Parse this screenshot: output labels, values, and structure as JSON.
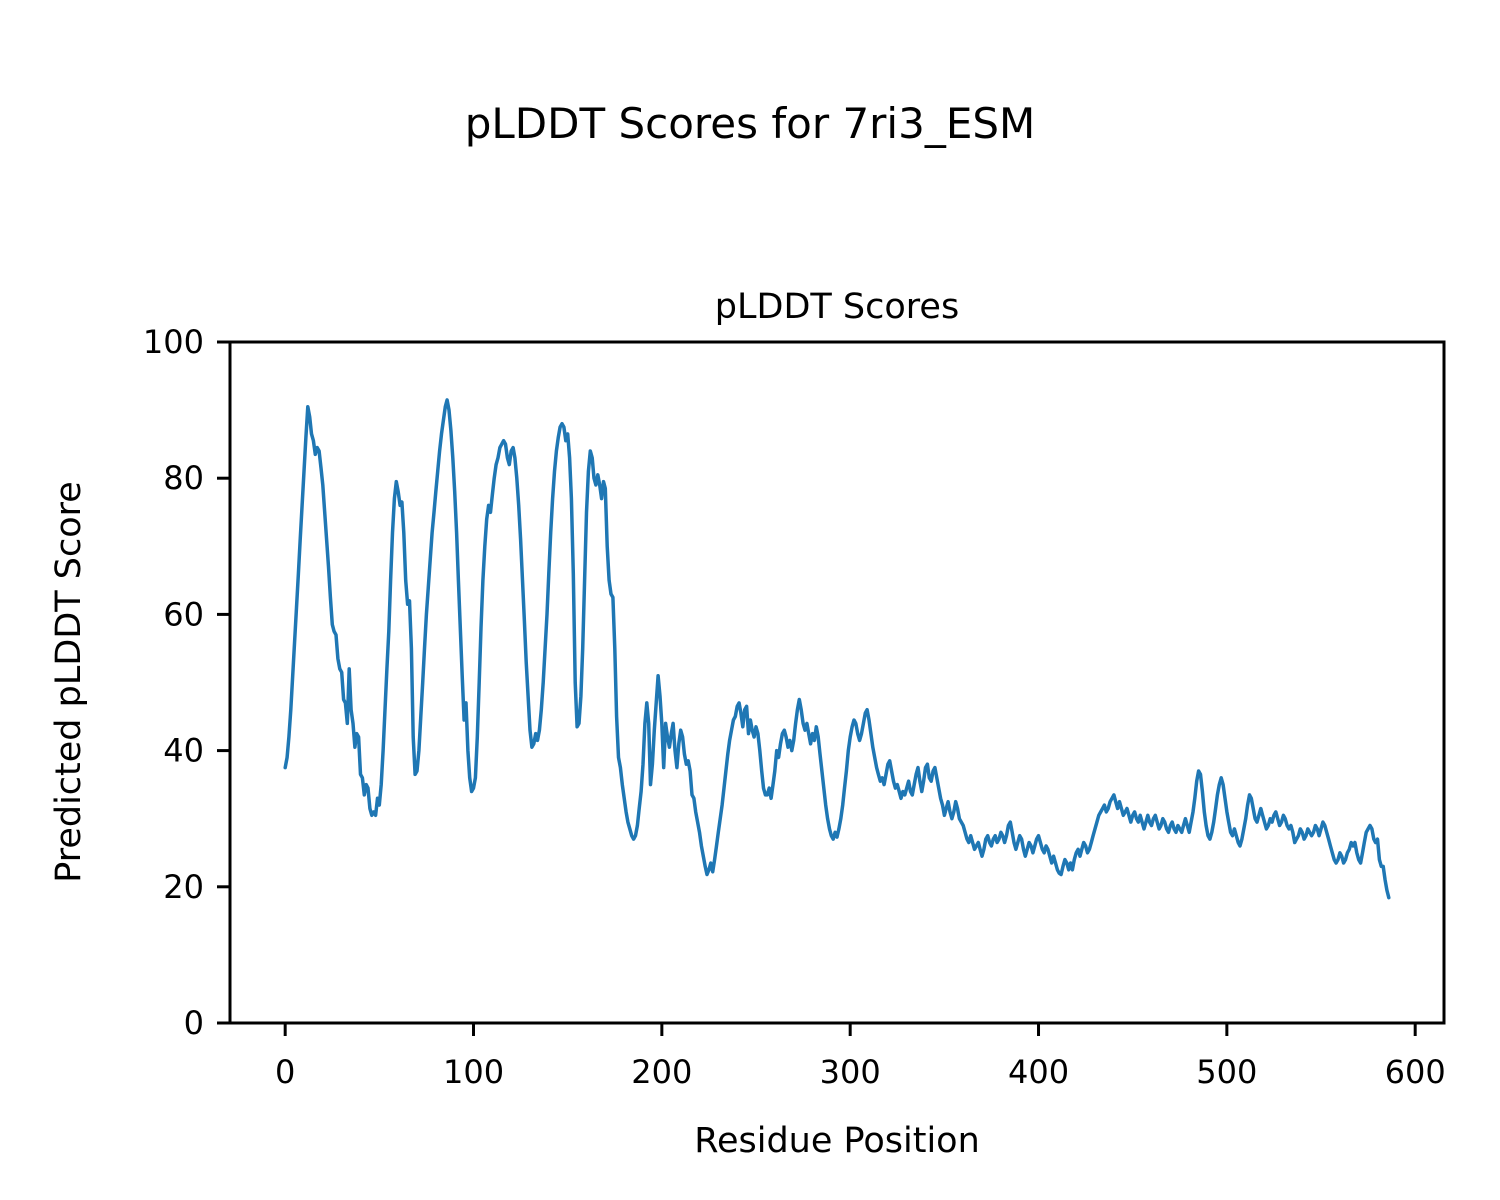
{
  "figure": {
    "suptitle": "pLDDT Scores for 7ri3_ESM"
  },
  "chart_data": {
    "type": "line",
    "title": "pLDDT Scores",
    "xlabel": "Residue Position",
    "ylabel": "Predicted pLDDT Score",
    "xlim": [
      -29.3,
      615.3
    ],
    "ylim": [
      0,
      100
    ],
    "xticks": [
      0,
      100,
      200,
      300,
      400,
      500,
      600
    ],
    "yticks": [
      0,
      20,
      40,
      60,
      80,
      100
    ],
    "grid": false,
    "legend": null,
    "line_color": "#1f77b4",
    "series": [
      {
        "name": "pLDDT",
        "x_start": 0,
        "x_step": 1,
        "values": [
          37.5,
          39,
          42,
          46,
          51,
          56,
          61,
          66,
          71,
          76,
          81,
          86,
          90.5,
          89,
          86.5,
          85.5,
          83.5,
          84.5,
          84,
          81.5,
          79,
          75,
          71,
          67,
          62.5,
          58.5,
          57.5,
          57,
          53.5,
          52,
          51.5,
          47.5,
          47,
          44,
          52,
          46,
          44,
          40.5,
          42.5,
          42,
          36.5,
          36,
          33.5,
          35,
          34.5,
          31.5,
          30.5,
          31,
          30.5,
          33,
          32,
          35,
          40,
          46,
          52,
          57.5,
          65,
          72,
          77,
          79.5,
          78,
          76,
          76.5,
          72,
          65,
          61.5,
          62,
          55,
          42,
          36.5,
          37,
          40,
          45,
          50,
          55,
          60,
          64,
          68,
          72,
          75,
          78,
          81,
          84,
          86.5,
          88.5,
          90.5,
          91.5,
          90,
          87,
          83,
          78,
          72,
          65,
          58,
          51,
          44.5,
          47,
          40,
          36,
          34,
          34.5,
          36,
          42,
          50,
          58,
          65,
          70,
          74,
          76,
          75,
          77.5,
          80,
          82,
          83,
          84.5,
          85,
          85.5,
          85,
          83,
          82,
          84,
          84.5,
          83,
          80,
          76,
          71,
          65,
          59,
          53,
          48,
          43,
          40.5,
          41,
          42.5,
          41.5,
          43,
          46,
          50,
          55,
          60,
          66,
          72,
          77,
          81,
          84,
          86,
          87.5,
          88,
          87.5,
          85.5,
          86.5,
          83,
          77,
          66,
          50,
          43.5,
          44,
          48,
          55,
          65,
          75,
          81,
          84,
          83,
          80,
          79,
          80.5,
          79,
          77,
          79.5,
          78.5,
          70,
          65,
          63,
          62.5,
          55,
          45,
          39,
          37.5,
          35,
          33,
          31,
          29.5,
          28.5,
          27.5,
          27,
          27.5,
          29,
          31.5,
          34,
          38,
          44,
          47,
          44,
          35,
          38,
          43,
          47,
          51,
          48,
          44,
          37.5,
          44,
          42,
          40.5,
          42.5,
          44,
          40,
          37.5,
          41,
          43,
          42,
          39.5,
          38,
          38.5,
          37,
          33.5,
          33,
          31,
          29.5,
          28,
          26,
          24.5,
          23,
          21.8,
          22.5,
          23.5,
          22.2,
          24,
          26,
          28,
          30,
          32,
          34.5,
          37,
          39.5,
          41.5,
          43,
          44.5,
          45,
          46.5,
          47,
          45.5,
          43.5,
          46,
          46.5,
          42.5,
          44.5,
          43,
          42,
          43.5,
          42.5,
          40,
          37,
          34.5,
          33.5,
          33.5,
          34.5,
          33,
          35,
          37,
          40,
          39,
          41,
          42.5,
          43,
          42,
          40.5,
          41.5,
          40,
          41.5,
          44,
          46,
          47.5,
          46,
          44,
          43,
          44,
          42.5,
          41,
          42.5,
          41.5,
          43.5,
          42,
          39.5,
          37,
          34.5,
          32,
          30,
          28.5,
          27.5,
          27,
          28,
          27.3,
          28.5,
          30,
          32,
          34.5,
          37,
          40,
          42,
          43.5,
          44.5,
          44,
          42.5,
          41.5,
          42.5,
          44,
          45.5,
          46,
          44.5,
          42.5,
          40.5,
          39,
          37.5,
          36.5,
          35.5,
          36,
          35,
          36.5,
          38,
          38.5,
          37,
          35.5,
          34.5,
          35,
          34,
          33,
          34,
          33.5,
          34.5,
          35.5,
          34,
          33.5,
          35,
          36.5,
          37.5,
          35.5,
          34,
          35.5,
          37.5,
          38,
          36,
          35.5,
          37,
          37.5,
          36,
          34.5,
          33,
          32,
          30.5,
          31.5,
          32.5,
          31,
          30,
          31,
          32.5,
          31.5,
          30,
          29.5,
          29,
          28,
          27,
          26.5,
          27.5,
          26.5,
          25.5,
          26,
          26.5,
          25.5,
          24.5,
          25.5,
          27,
          27.5,
          26.5,
          26,
          27,
          27.5,
          26.5,
          27,
          28,
          27.5,
          26.5,
          27.5,
          29,
          29.5,
          28,
          26.5,
          25.5,
          26.5,
          27.5,
          27,
          25.5,
          24.5,
          25.5,
          26.5,
          26,
          25,
          26,
          27,
          27.5,
          26.5,
          25.5,
          25,
          26,
          25.5,
          24.5,
          23.5,
          24.5,
          23.5,
          22.5,
          22,
          21.8,
          23,
          24,
          23.5,
          22.5,
          23.5,
          22.5,
          24,
          25,
          25.5,
          24.5,
          25.5,
          26.5,
          26,
          25,
          25.5,
          26.5,
          27.5,
          28.5,
          29.5,
          30.5,
          31,
          31.5,
          32,
          31,
          31.5,
          32.5,
          33,
          33.5,
          32.5,
          31.5,
          32.5,
          31.5,
          30.5,
          31,
          31.5,
          30.5,
          29.5,
          30.5,
          31,
          30,
          29.5,
          30.5,
          29.5,
          28.5,
          29.5,
          30.5,
          29.5,
          29,
          30,
          30.5,
          29.5,
          28.5,
          29,
          30,
          29.5,
          28.5,
          28,
          29,
          29.5,
          28.5,
          28,
          29,
          28.5,
          28,
          29,
          30,
          29,
          28,
          29.5,
          31,
          33,
          35.5,
          37,
          36.5,
          34,
          31,
          29,
          27.5,
          27,
          28,
          29.5,
          31.5,
          33.5,
          35,
          36,
          35,
          33,
          31,
          29.5,
          28,
          27.5,
          28.5,
          27.5,
          26.5,
          26,
          27,
          28.5,
          30,
          32,
          33.5,
          33,
          31.5,
          30,
          29.5,
          30.5,
          31.5,
          30.5,
          29.5,
          28.5,
          29,
          30,
          29.5,
          30.5,
          31,
          30,
          29,
          29.5,
          30.5,
          30,
          29,
          28.5,
          29,
          28,
          26.5,
          27,
          27.5,
          28.5,
          28,
          27,
          27.5,
          28.5,
          28,
          27.5,
          28,
          29,
          28.5,
          27.5,
          28.5,
          29.5,
          29,
          28,
          27,
          26,
          25,
          24,
          23.5,
          24,
          25,
          24.5,
          23.5,
          24,
          25,
          25.5,
          26.5,
          26,
          26.5,
          25,
          24,
          23.5,
          25,
          26.5,
          28,
          28.5,
          29,
          28.5,
          27,
          26.5,
          27,
          24,
          23,
          23,
          21,
          19.5,
          18.4
        ]
      }
    ]
  }
}
